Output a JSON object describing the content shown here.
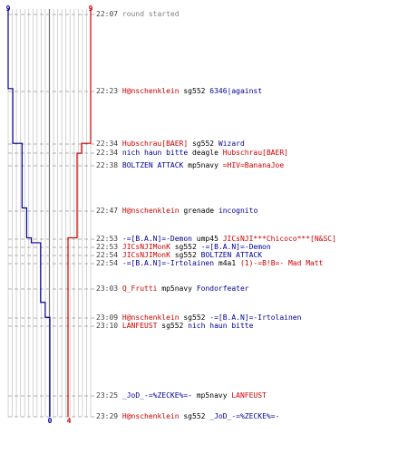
{
  "colors": {
    "red": "#cc0000",
    "blue": "#000099",
    "grid": "#c8c8c8",
    "time": "#404040",
    "text": "#000000",
    "info": "#808080"
  },
  "score_top": {
    "blue": "9",
    "red": "9"
  },
  "score_bottom": {
    "blue": "0",
    "red": "4"
  },
  "chart_data": {
    "type": "line",
    "y_is_time": true,
    "ylim_minutes": [
      1327,
      1409
    ],
    "series": [
      {
        "team": "blue",
        "points": [
          [
            1327,
            9
          ],
          [
            1343,
            8
          ],
          [
            1354,
            7
          ],
          [
            1354,
            6
          ],
          [
            1367,
            5
          ],
          [
            1373,
            4
          ],
          [
            1374,
            3
          ],
          [
            1374,
            2
          ],
          [
            1386,
            1
          ],
          [
            1389,
            0
          ]
        ]
      },
      {
        "team": "red",
        "points": [
          [
            1327,
            9
          ],
          [
            1354,
            8
          ],
          [
            1354,
            7
          ],
          [
            1356,
            6
          ],
          [
            1373,
            5
          ],
          [
            1373,
            4
          ],
          [
            1405,
            4
          ]
        ]
      }
    ]
  },
  "events": [
    {
      "time": "22:07",
      "segments": [
        {
          "text": "round started",
          "c": "info"
        }
      ]
    },
    {
      "time": "22:23",
      "segments": [
        {
          "text": "H@nschenklein",
          "c": "red"
        },
        {
          "text": " sg552 ",
          "c": "txt"
        },
        {
          "text": "6346|against",
          "c": "blue"
        }
      ]
    },
    {
      "time": "22:34",
      "segments": [
        {
          "text": "Hubschrau[BAER]",
          "c": "red"
        },
        {
          "text": " sg552 ",
          "c": "txt"
        },
        {
          "text": "Wizard",
          "c": "blue"
        }
      ]
    },
    {
      "time": "22:34",
      "segments": [
        {
          "text": "nich haun bitte",
          "c": "blue"
        },
        {
          "text": " deagle ",
          "c": "txt"
        },
        {
          "text": "Hubschrau[BAER]",
          "c": "red"
        }
      ]
    },
    {
      "time": "22:38",
      "segments": [
        {
          "text": "BOLTZEN ATTACK",
          "c": "blue"
        },
        {
          "text": " mp5navy ",
          "c": "txt"
        },
        {
          "text": "=HIV=BananaJoe",
          "c": "red"
        }
      ]
    },
    {
      "time": "22:47",
      "segments": [
        {
          "text": "H@nschenklein",
          "c": "red"
        },
        {
          "text": " grenade ",
          "c": "txt"
        },
        {
          "text": "incognito",
          "c": "blue"
        }
      ]
    },
    {
      "time": "22:53",
      "segments": [
        {
          "text": "-=[B.A.N]=-Demon",
          "c": "blue"
        },
        {
          "text": " ump45 ",
          "c": "txt"
        },
        {
          "text": "JICsNJI***Chicoco***[N&SC]",
          "c": "red"
        }
      ]
    },
    {
      "time": "22:53",
      "segments": [
        {
          "text": "JICsNJIMonK",
          "c": "red"
        },
        {
          "text": " sg552 ",
          "c": "txt"
        },
        {
          "text": "-=[B.A.N]=-Demon",
          "c": "blue"
        }
      ]
    },
    {
      "time": "22:54",
      "segments": [
        {
          "text": "JICsNJIMonK",
          "c": "red"
        },
        {
          "text": " sg552 ",
          "c": "txt"
        },
        {
          "text": "BOLTZEN ATTACK",
          "c": "blue"
        }
      ]
    },
    {
      "time": "22:54",
      "segments": [
        {
          "text": "-=[B.A.N]=-Irtolainen",
          "c": "blue"
        },
        {
          "text": " m4a1 ",
          "c": "txt"
        },
        {
          "text": "(1)-=B!B=- Mad Matt",
          "c": "red"
        }
      ]
    },
    {
      "time": "23:03",
      "segments": [
        {
          "text": "Q_Frutti",
          "c": "red"
        },
        {
          "text": " mp5navy ",
          "c": "txt"
        },
        {
          "text": "Fondorfeater",
          "c": "blue"
        }
      ]
    },
    {
      "time": "23:09",
      "segments": [
        {
          "text": "H@nschenklein",
          "c": "red"
        },
        {
          "text": " sg552 ",
          "c": "txt"
        },
        {
          "text": "-=[B.A.N]=-Irtolainen",
          "c": "blue"
        }
      ]
    },
    {
      "time": "23:10",
      "segments": [
        {
          "text": "LANFEUST",
          "c": "red"
        },
        {
          "text": " sg552 ",
          "c": "txt"
        },
        {
          "text": "nich haun bitte",
          "c": "blue"
        }
      ]
    },
    {
      "time": "23:25",
      "segments": [
        {
          "text": "_JoD_-=%ZECKE%=-",
          "c": "blue"
        },
        {
          "text": " mp5navy ",
          "c": "txt"
        },
        {
          "text": "LANFEUST",
          "c": "red"
        }
      ]
    },
    {
      "time": "23:29",
      "segments": [
        {
          "text": "H@nschenklein",
          "c": "red"
        },
        {
          "text": " sg552 ",
          "c": "txt"
        },
        {
          "text": "_JoD_-=%ZECKE%=-",
          "c": "blue"
        }
      ]
    }
  ]
}
